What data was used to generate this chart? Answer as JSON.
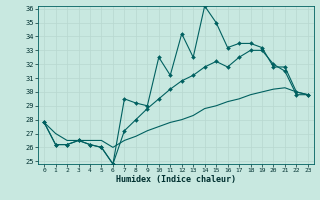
{
  "xlabel": "Humidex (Indice chaleur)",
  "bg_color": "#c8e8e0",
  "grid_color": "#b8d8d0",
  "line_color": "#006060",
  "x": [
    0,
    1,
    2,
    3,
    4,
    5,
    6,
    7,
    8,
    9,
    10,
    11,
    12,
    13,
    14,
    15,
    16,
    17,
    18,
    19,
    20,
    21,
    22,
    23
  ],
  "line_jagged": [
    27.8,
    26.2,
    26.2,
    26.5,
    26.2,
    26.0,
    24.8,
    29.5,
    29.2,
    29.0,
    32.5,
    31.2,
    34.2,
    32.5,
    36.2,
    35.0,
    33.2,
    33.5,
    33.5,
    33.2,
    31.8,
    31.8,
    30.0,
    29.8
  ],
  "line_smooth": [
    27.8,
    26.2,
    26.2,
    26.5,
    26.2,
    26.0,
    24.8,
    27.2,
    28.0,
    28.8,
    29.5,
    30.2,
    30.8,
    31.2,
    31.8,
    32.2,
    31.8,
    32.5,
    33.0,
    33.0,
    32.0,
    31.5,
    29.8,
    29.8
  ],
  "line_linear": [
    27.8,
    27.0,
    26.5,
    26.5,
    26.5,
    26.5,
    26.0,
    26.5,
    26.8,
    27.2,
    27.5,
    27.8,
    28.0,
    28.3,
    28.8,
    29.0,
    29.3,
    29.5,
    29.8,
    30.0,
    30.2,
    30.3,
    30.0,
    29.8
  ],
  "ylim": [
    25,
    36
  ],
  "xlim": [
    -0.5,
    23.5
  ],
  "yticks": [
    25,
    26,
    27,
    28,
    29,
    30,
    31,
    32,
    33,
    34,
    35,
    36
  ],
  "xticks": [
    0,
    1,
    2,
    3,
    4,
    5,
    6,
    7,
    8,
    9,
    10,
    11,
    12,
    13,
    14,
    15,
    16,
    17,
    18,
    19,
    20,
    21,
    22,
    23
  ]
}
